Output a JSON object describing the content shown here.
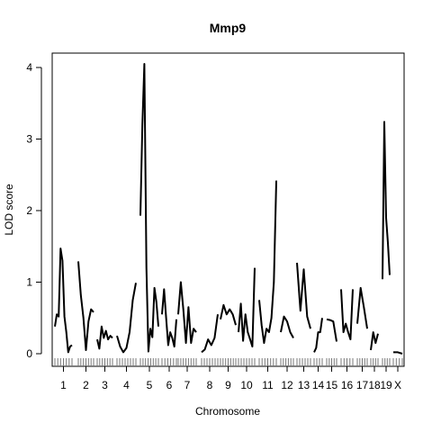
{
  "chart_data": {
    "type": "line",
    "title": "Mmp9",
    "xlabel": "Chromosome",
    "ylabel": "LOD score",
    "ylim": [
      0,
      4.2
    ],
    "y_ticks": [
      0,
      1,
      2,
      3,
      4
    ],
    "chromosomes": [
      "1",
      "2",
      "3",
      "4",
      "5",
      "6",
      "7",
      "8",
      "9",
      "10",
      "11",
      "12",
      "13",
      "14",
      "15",
      "16",
      "17",
      "18",
      "19",
      "X"
    ],
    "x_tick_labels": [
      "1",
      "2",
      "3",
      "4",
      "5",
      "6",
      "7",
      "8",
      "9",
      "10",
      "11",
      "12",
      "13",
      "14",
      "15",
      "16",
      "17",
      "18",
      "19",
      "X"
    ],
    "series": [
      {
        "chr": "1",
        "values": [
          0.38,
          0.55,
          0.52,
          1.47,
          1.3,
          0.52,
          0.3,
          0.02,
          0.1,
          0.12
        ]
      },
      {
        "chr": "2",
        "values": [
          1.29,
          0.82,
          0.5,
          0.05,
          0.45,
          0.62,
          0.58
        ]
      },
      {
        "chr": "3",
        "values": [
          0.2,
          0.07,
          0.38,
          0.22,
          0.32,
          0.2,
          0.25,
          0.22
        ]
      },
      {
        "chr": "4",
        "values": [
          0.25,
          0.1,
          0.02,
          0.08,
          0.3,
          0.75,
          0.99
        ]
      },
      {
        "chr": "5",
        "values": [
          1.93,
          3.2,
          4.05,
          1.2,
          0.03,
          0.35,
          0.23,
          0.92,
          0.72,
          0.38
        ]
      },
      {
        "chr": "6",
        "values": [
          0.55,
          0.9,
          0.5,
          0.12,
          0.3,
          0.22,
          0.1,
          0.48
        ]
      },
      {
        "chr": "7",
        "values": [
          0.55,
          1.0,
          0.62,
          0.15,
          0.65,
          0.15,
          0.35,
          0.3
        ]
      },
      {
        "chr": "8",
        "values": [
          0.02,
          0.06,
          0.2,
          0.12,
          0.22,
          0.55
        ]
      },
      {
        "chr": "9",
        "values": [
          0.48,
          0.68,
          0.55,
          0.62,
          0.55,
          0.4
        ]
      },
      {
        "chr": "10",
        "values": [
          0.3,
          0.7,
          0.18,
          0.55,
          0.3,
          0.2,
          0.1,
          1.2
        ]
      },
      {
        "chr": "11",
        "values": [
          0.75,
          0.4,
          0.15,
          0.35,
          0.3,
          0.5,
          1.0,
          2.42
        ]
      },
      {
        "chr": "12",
        "values": [
          0.3,
          0.52,
          0.45,
          0.3,
          0.22
        ]
      },
      {
        "chr": "13",
        "values": [
          1.27,
          0.6,
          1.18,
          0.52,
          0.35
        ]
      },
      {
        "chr": "14",
        "values": [
          0.02,
          0.08,
          0.3,
          0.3,
          0.5
        ]
      },
      {
        "chr": "15",
        "values": [
          0.48,
          0.47,
          0.45,
          0.17
        ]
      },
      {
        "chr": "16",
        "values": [
          0.9,
          0.3,
          0.42,
          0.3,
          0.2,
          0.9
        ]
      },
      {
        "chr": "17",
        "values": [
          0.42,
          0.92,
          0.65,
          0.35
        ]
      },
      {
        "chr": "18",
        "values": [
          0.05,
          0.3,
          0.15,
          0.28
        ]
      },
      {
        "chr": "19",
        "values": [
          1.04,
          3.24,
          1.9,
          1.55,
          1.1
        ]
      },
      {
        "chr": "X",
        "values": [
          0.02,
          0.02,
          0.0
        ]
      }
    ]
  }
}
